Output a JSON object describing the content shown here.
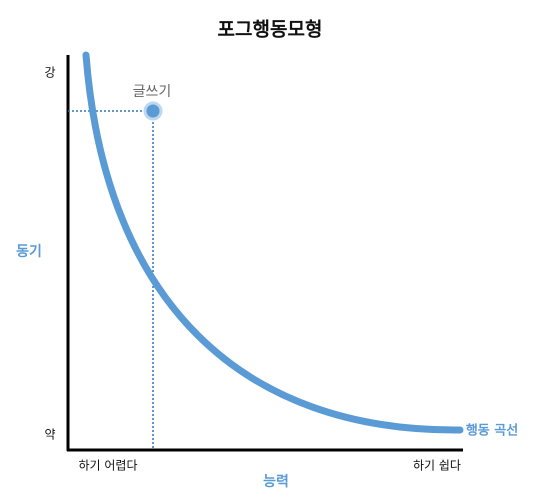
{
  "title": "포그행동모형",
  "axes": {
    "y": {
      "label": "동기",
      "high": "강",
      "low": "약"
    },
    "x": {
      "label": "능력",
      "low": "하기 어렵다",
      "high": "하기 쉽다"
    }
  },
  "curve": {
    "label": "행동 곡선"
  },
  "point": {
    "label": "글쓰기"
  }
}
